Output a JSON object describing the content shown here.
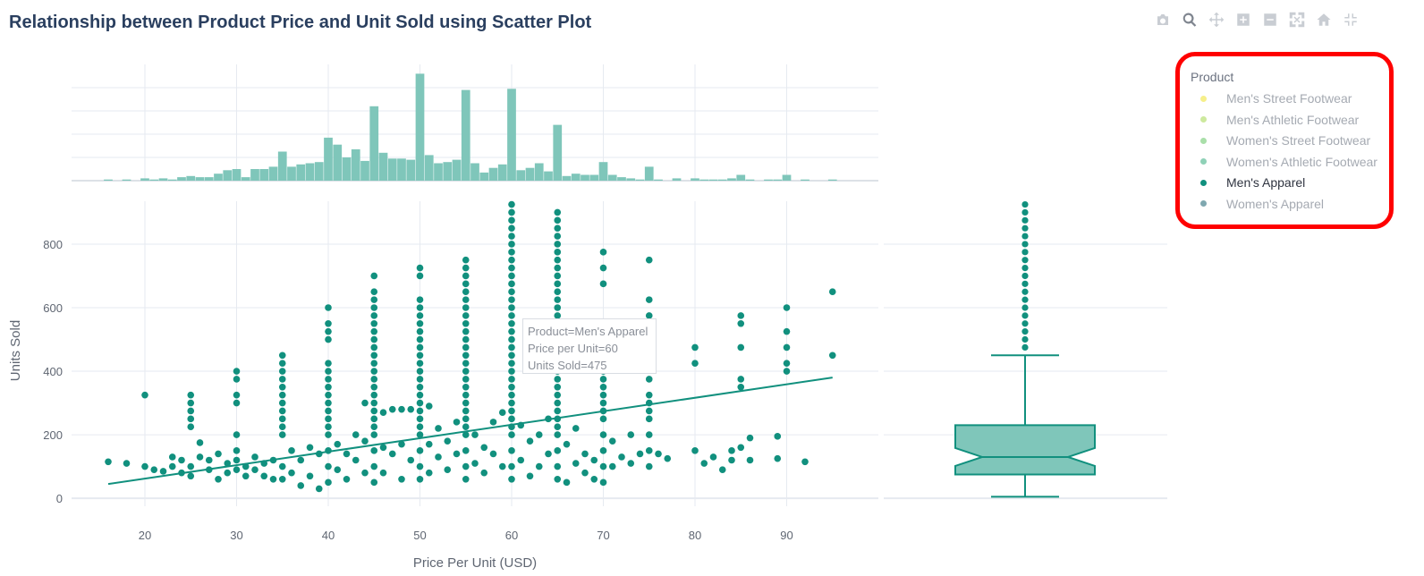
{
  "title": "Relationship between Product Price and Unit Sold using Scatter Plot",
  "modebar": [
    {
      "icon": "camera-icon",
      "name": "download-png-button"
    },
    {
      "icon": "zoom-icon",
      "name": "zoom-button",
      "active": true
    },
    {
      "icon": "pan-icon",
      "name": "pan-button"
    },
    {
      "icon": "zoom-in-icon",
      "name": "zoom-in-button"
    },
    {
      "icon": "zoom-out-icon",
      "name": "zoom-out-button"
    },
    {
      "icon": "autoscale-icon",
      "name": "autoscale-button"
    },
    {
      "icon": "home-icon",
      "name": "reset-axes-button"
    },
    {
      "icon": "spike-lines-icon",
      "name": "spike-lines-button"
    }
  ],
  "legend": {
    "title": "Product",
    "items": [
      {
        "label": "Men's Street Footwear",
        "color": "#f6ef8a",
        "muted": true
      },
      {
        "label": "Men's Athletic Footwear",
        "color": "#cde99e",
        "muted": true
      },
      {
        "label": "Women's Street Footwear",
        "color": "#a9dfa9",
        "muted": true
      },
      {
        "label": "Women's Athletic Footwear",
        "color": "#8fd1b7",
        "muted": true
      },
      {
        "label": "Men's Apparel",
        "color": "#11907e",
        "muted": false
      },
      {
        "label": "Women's Apparel",
        "color": "#7fa8b0",
        "muted": true
      }
    ]
  },
  "tooltip": {
    "product": "Product=Men's Apparel",
    "price": "Price per Unit=60",
    "units": "Units Sold=475"
  },
  "colors": {
    "series": "#11907e",
    "histogram": "#7fc6ba",
    "grid": "#e6eaf0",
    "axis_text": "#5f6672"
  },
  "chart_data": {
    "type": "scatter",
    "series_name": "Men's Apparel",
    "xlabel": "Price Per Unit (USD)",
    "ylabel": "Units Sold",
    "xlim": [
      12,
      100
    ],
    "ylim": [
      -25,
      935
    ],
    "x_ticks": [
      20,
      30,
      40,
      50,
      60,
      70,
      80,
      90
    ],
    "y_ticks": [
      0,
      200,
      400,
      600,
      800
    ],
    "trendline": {
      "x": [
        16,
        95
      ],
      "y": [
        45,
        380
      ]
    },
    "points": [
      [
        16,
        115
      ],
      [
        18,
        110
      ],
      [
        20,
        325
      ],
      [
        20,
        100
      ],
      [
        21,
        90
      ],
      [
        22,
        85
      ],
      [
        23,
        130
      ],
      [
        23,
        100
      ],
      [
        24,
        80
      ],
      [
        24,
        120
      ],
      [
        25,
        325
      ],
      [
        25,
        300
      ],
      [
        25,
        275
      ],
      [
        25,
        250
      ],
      [
        25,
        225
      ],
      [
        25,
        100
      ],
      [
        25,
        70
      ],
      [
        26,
        175
      ],
      [
        26,
        130
      ],
      [
        27,
        120
      ],
      [
        27,
        90
      ],
      [
        28,
        140
      ],
      [
        28,
        60
      ],
      [
        29,
        110
      ],
      [
        29,
        80
      ],
      [
        30,
        400
      ],
      [
        30,
        375
      ],
      [
        30,
        325
      ],
      [
        30,
        300
      ],
      [
        30,
        200
      ],
      [
        30,
        150
      ],
      [
        30,
        120
      ],
      [
        30,
        90
      ],
      [
        31,
        100
      ],
      [
        31,
        70
      ],
      [
        32,
        130
      ],
      [
        32,
        90
      ],
      [
        33,
        110
      ],
      [
        33,
        70
      ],
      [
        34,
        120
      ],
      [
        34,
        60
      ],
      [
        35,
        450
      ],
      [
        35,
        425
      ],
      [
        35,
        400
      ],
      [
        35,
        375
      ],
      [
        35,
        350
      ],
      [
        35,
        325
      ],
      [
        35,
        300
      ],
      [
        35,
        275
      ],
      [
        35,
        250
      ],
      [
        35,
        225
      ],
      [
        35,
        200
      ],
      [
        35,
        100
      ],
      [
        35,
        60
      ],
      [
        36,
        150
      ],
      [
        36,
        80
      ],
      [
        37,
        120
      ],
      [
        37,
        40
      ],
      [
        38,
        160
      ],
      [
        38,
        70
      ],
      [
        39,
        140
      ],
      [
        39,
        30
      ],
      [
        40,
        600
      ],
      [
        40,
        550
      ],
      [
        40,
        525
      ],
      [
        40,
        500
      ],
      [
        40,
        425
      ],
      [
        40,
        400
      ],
      [
        40,
        375
      ],
      [
        40,
        350
      ],
      [
        40,
        325
      ],
      [
        40,
        300
      ],
      [
        40,
        275
      ],
      [
        40,
        250
      ],
      [
        40,
        225
      ],
      [
        40,
        200
      ],
      [
        40,
        150
      ],
      [
        40,
        100
      ],
      [
        40,
        50
      ],
      [
        41,
        170
      ],
      [
        41,
        90
      ],
      [
        42,
        140
      ],
      [
        42,
        60
      ],
      [
        43,
        200
      ],
      [
        43,
        120
      ],
      [
        44,
        300
      ],
      [
        44,
        180
      ],
      [
        44,
        80
      ],
      [
        45,
        700
      ],
      [
        45,
        650
      ],
      [
        45,
        625
      ],
      [
        45,
        600
      ],
      [
        45,
        575
      ],
      [
        45,
        550
      ],
      [
        45,
        525
      ],
      [
        45,
        500
      ],
      [
        45,
        475
      ],
      [
        45,
        450
      ],
      [
        45,
        425
      ],
      [
        45,
        400
      ],
      [
        45,
        375
      ],
      [
        45,
        350
      ],
      [
        45,
        325
      ],
      [
        45,
        300
      ],
      [
        45,
        275
      ],
      [
        45,
        250
      ],
      [
        45,
        225
      ],
      [
        45,
        200
      ],
      [
        45,
        150
      ],
      [
        45,
        100
      ],
      [
        45,
        50
      ],
      [
        46,
        270
      ],
      [
        46,
        160
      ],
      [
        46,
        80
      ],
      [
        47,
        280
      ],
      [
        47,
        140
      ],
      [
        48,
        280
      ],
      [
        48,
        170
      ],
      [
        48,
        60
      ],
      [
        49,
        280
      ],
      [
        49,
        120
      ],
      [
        50,
        725
      ],
      [
        50,
        700
      ],
      [
        50,
        625
      ],
      [
        50,
        600
      ],
      [
        50,
        575
      ],
      [
        50,
        550
      ],
      [
        50,
        525
      ],
      [
        50,
        500
      ],
      [
        50,
        475
      ],
      [
        50,
        450
      ],
      [
        50,
        425
      ],
      [
        50,
        400
      ],
      [
        50,
        375
      ],
      [
        50,
        350
      ],
      [
        50,
        325
      ],
      [
        50,
        300
      ],
      [
        50,
        275
      ],
      [
        50,
        250
      ],
      [
        50,
        225
      ],
      [
        50,
        200
      ],
      [
        50,
        150
      ],
      [
        50,
        100
      ],
      [
        50,
        60
      ],
      [
        51,
        290
      ],
      [
        51,
        170
      ],
      [
        51,
        80
      ],
      [
        52,
        220
      ],
      [
        52,
        130
      ],
      [
        53,
        180
      ],
      [
        53,
        90
      ],
      [
        54,
        240
      ],
      [
        54,
        140
      ],
      [
        55,
        750
      ],
      [
        55,
        725
      ],
      [
        55,
        700
      ],
      [
        55,
        675
      ],
      [
        55,
        650
      ],
      [
        55,
        625
      ],
      [
        55,
        600
      ],
      [
        55,
        575
      ],
      [
        55,
        550
      ],
      [
        55,
        525
      ],
      [
        55,
        500
      ],
      [
        55,
        475
      ],
      [
        55,
        450
      ],
      [
        55,
        425
      ],
      [
        55,
        400
      ],
      [
        55,
        375
      ],
      [
        55,
        350
      ],
      [
        55,
        325
      ],
      [
        55,
        300
      ],
      [
        55,
        275
      ],
      [
        55,
        250
      ],
      [
        55,
        225
      ],
      [
        55,
        200
      ],
      [
        55,
        150
      ],
      [
        55,
        100
      ],
      [
        55,
        60
      ],
      [
        56,
        200
      ],
      [
        56,
        110
      ],
      [
        57,
        160
      ],
      [
        57,
        80
      ],
      [
        58,
        240
      ],
      [
        58,
        140
      ],
      [
        59,
        270
      ],
      [
        59,
        100
      ],
      [
        60,
        925
      ],
      [
        60,
        900
      ],
      [
        60,
        875
      ],
      [
        60,
        850
      ],
      [
        60,
        825
      ],
      [
        60,
        800
      ],
      [
        60,
        775
      ],
      [
        60,
        750
      ],
      [
        60,
        725
      ],
      [
        60,
        700
      ],
      [
        60,
        675
      ],
      [
        60,
        650
      ],
      [
        60,
        625
      ],
      [
        60,
        600
      ],
      [
        60,
        575
      ],
      [
        60,
        550
      ],
      [
        60,
        525
      ],
      [
        60,
        500
      ],
      [
        60,
        475
      ],
      [
        60,
        450
      ],
      [
        60,
        425
      ],
      [
        60,
        400
      ],
      [
        60,
        375
      ],
      [
        60,
        350
      ],
      [
        60,
        325
      ],
      [
        60,
        300
      ],
      [
        60,
        275
      ],
      [
        60,
        250
      ],
      [
        60,
        225
      ],
      [
        60,
        200
      ],
      [
        60,
        150
      ],
      [
        60,
        100
      ],
      [
        60,
        60
      ],
      [
        61,
        230
      ],
      [
        61,
        120
      ],
      [
        62,
        180
      ],
      [
        62,
        70
      ],
      [
        63,
        200
      ],
      [
        63,
        100
      ],
      [
        64,
        250
      ],
      [
        64,
        140
      ],
      [
        65,
        900
      ],
      [
        65,
        875
      ],
      [
        65,
        850
      ],
      [
        65,
        825
      ],
      [
        65,
        800
      ],
      [
        65,
        775
      ],
      [
        65,
        750
      ],
      [
        65,
        725
      ],
      [
        65,
        700
      ],
      [
        65,
        675
      ],
      [
        65,
        650
      ],
      [
        65,
        625
      ],
      [
        65,
        600
      ],
      [
        65,
        575
      ],
      [
        65,
        550
      ],
      [
        65,
        525
      ],
      [
        65,
        500
      ],
      [
        65,
        475
      ],
      [
        65,
        450
      ],
      [
        65,
        425
      ],
      [
        65,
        400
      ],
      [
        65,
        375
      ],
      [
        65,
        350
      ],
      [
        65,
        325
      ],
      [
        65,
        300
      ],
      [
        65,
        275
      ],
      [
        65,
        250
      ],
      [
        65,
        225
      ],
      [
        65,
        200
      ],
      [
        65,
        150
      ],
      [
        65,
        100
      ],
      [
        65,
        60
      ],
      [
        66,
        170
      ],
      [
        66,
        50
      ],
      [
        67,
        220
      ],
      [
        67,
        110
      ],
      [
        68,
        140
      ],
      [
        68,
        80
      ],
      [
        69,
        120
      ],
      [
        69,
        60
      ],
      [
        70,
        775
      ],
      [
        70,
        725
      ],
      [
        70,
        675
      ],
      [
        70,
        450
      ],
      [
        70,
        425
      ],
      [
        70,
        400
      ],
      [
        70,
        375
      ],
      [
        70,
        350
      ],
      [
        70,
        325
      ],
      [
        70,
        300
      ],
      [
        70,
        275
      ],
      [
        70,
        250
      ],
      [
        70,
        200
      ],
      [
        70,
        150
      ],
      [
        70,
        100
      ],
      [
        70,
        50
      ],
      [
        71,
        180
      ],
      [
        71,
        100
      ],
      [
        72,
        130
      ],
      [
        73,
        200
      ],
      [
        73,
        110
      ],
      [
        74,
        140
      ],
      [
        75,
        750
      ],
      [
        75,
        625
      ],
      [
        75,
        575
      ],
      [
        75,
        525
      ],
      [
        75,
        475
      ],
      [
        75,
        425
      ],
      [
        75,
        375
      ],
      [
        75,
        325
      ],
      [
        75,
        300
      ],
      [
        75,
        275
      ],
      [
        75,
        250
      ],
      [
        75,
        200
      ],
      [
        75,
        150
      ],
      [
        75,
        100
      ],
      [
        76,
        140
      ],
      [
        77,
        125
      ],
      [
        80,
        475
      ],
      [
        80,
        425
      ],
      [
        80,
        150
      ],
      [
        81,
        110
      ],
      [
        82,
        130
      ],
      [
        83,
        90
      ],
      [
        84,
        150
      ],
      [
        84,
        120
      ],
      [
        85,
        575
      ],
      [
        85,
        550
      ],
      [
        85,
        475
      ],
      [
        85,
        375
      ],
      [
        85,
        350
      ],
      [
        85,
        160
      ],
      [
        86,
        190
      ],
      [
        86,
        120
      ],
      [
        89,
        195
      ],
      [
        89,
        125
      ],
      [
        90,
        600
      ],
      [
        90,
        525
      ],
      [
        90,
        475
      ],
      [
        90,
        425
      ],
      [
        90,
        400
      ],
      [
        92,
        115
      ],
      [
        95,
        650
      ],
      [
        95,
        450
      ]
    ],
    "histogram": {
      "x": [
        16,
        18,
        20,
        21,
        22,
        23,
        24,
        25,
        26,
        27,
        28,
        29,
        30,
        31,
        32,
        33,
        34,
        35,
        36,
        37,
        38,
        39,
        40,
        41,
        42,
        43,
        44,
        45,
        46,
        47,
        48,
        49,
        50,
        51,
        52,
        53,
        54,
        55,
        56,
        57,
        58,
        59,
        60,
        61,
        62,
        63,
        64,
        65,
        66,
        67,
        68,
        69,
        70,
        71,
        72,
        73,
        74,
        75,
        76,
        78,
        80,
        81,
        82,
        83,
        84,
        85,
        86,
        88,
        89,
        90,
        92,
        95
      ],
      "counts": [
        1,
        1,
        2,
        1,
        2,
        1,
        3,
        4,
        3,
        3,
        6,
        9,
        10,
        3,
        10,
        10,
        12,
        25,
        12,
        14,
        15,
        16,
        37,
        31,
        20,
        27,
        17,
        64,
        24,
        19,
        19,
        18,
        92,
        22,
        15,
        16,
        18,
        78,
        15,
        7,
        11,
        14,
        79,
        9,
        11,
        15,
        8,
        48,
        4,
        6,
        5,
        5,
        16,
        5,
        3,
        2,
        1,
        12,
        1,
        2,
        2,
        1,
        1,
        1,
        2,
        5,
        1,
        1,
        1,
        5,
        1,
        1
      ]
    },
    "box": {
      "min": 5,
      "q1": 75,
      "median": 130,
      "q3": 230,
      "upper_fence": 450,
      "outliers": [
        475,
        500,
        525,
        550,
        575,
        600,
        625,
        650,
        675,
        700,
        725,
        750,
        775,
        800,
        825,
        850,
        875,
        900,
        925
      ]
    }
  }
}
